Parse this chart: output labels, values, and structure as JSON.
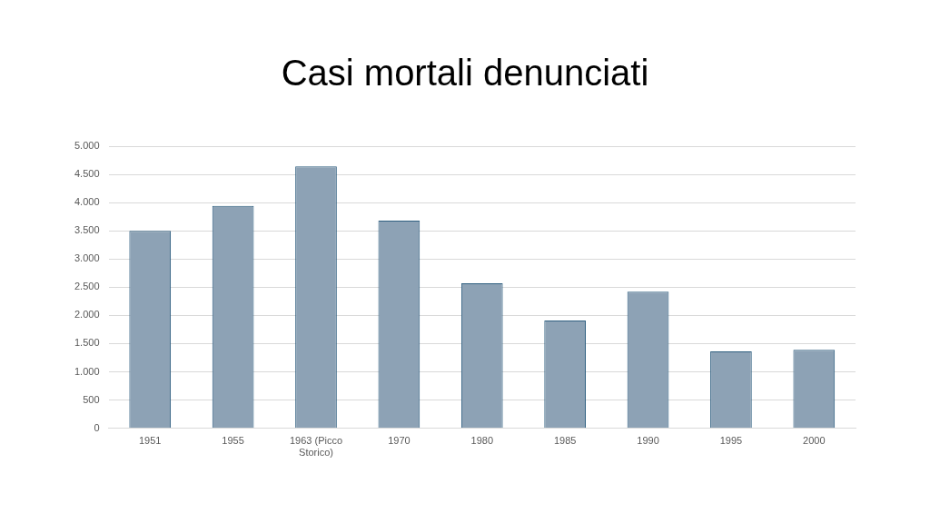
{
  "chart_data": {
    "type": "bar",
    "title": "Casi mortali denunciati",
    "categories": [
      "1951",
      "1955",
      "1963 (Picco Storico)",
      "1970",
      "1980",
      "1985",
      "1990",
      "1995",
      "2000"
    ],
    "values": [
      3500,
      3940,
      4640,
      3680,
      2570,
      1910,
      2420,
      1360,
      1390
    ],
    "color": "#8da2b5",
    "ylim": [
      0,
      5000
    ],
    "yticks": [
      {
        "value": 0,
        "label": "0"
      },
      {
        "value": 500,
        "label": "500"
      },
      {
        "value": 1000,
        "label": "1.000"
      },
      {
        "value": 1500,
        "label": "1.500"
      },
      {
        "value": 2000,
        "label": "2.000"
      },
      {
        "value": 2500,
        "label": "2.500"
      },
      {
        "value": 3000,
        "label": "3.000"
      },
      {
        "value": 3500,
        "label": "3.500"
      },
      {
        "value": 4000,
        "label": "4.000"
      },
      {
        "value": 4500,
        "label": "4.500"
      },
      {
        "value": 5000,
        "label": "5.000"
      }
    ],
    "grid": "y"
  }
}
